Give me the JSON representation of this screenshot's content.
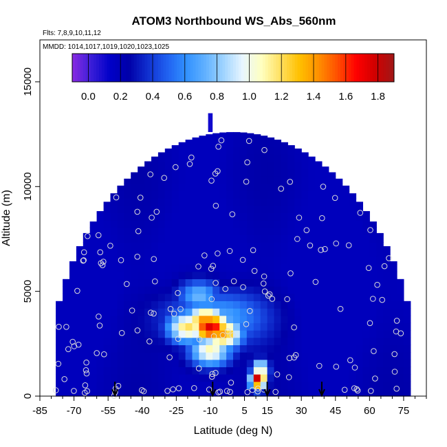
{
  "chart_data": {
    "type": "heatmap",
    "title": "ATOM3 Northbound WS_Abs_560nm",
    "flights_note": "Flts: 7,8,9,10,11,12",
    "dates_note": "MMDD: 1014,1017,1019,1020,1023,1025",
    "xlabel": "Latitude (deg N)",
    "ylabel": "Altitude (m)",
    "xlim": [
      -85,
      85
    ],
    "ylim": [
      0,
      17000
    ],
    "x_ticks": [
      -85,
      -70,
      -55,
      -40,
      -25,
      -10,
      5,
      15,
      30,
      45,
      60,
      75
    ],
    "y_ticks": [
      0,
      5000,
      10000,
      15000
    ],
    "colorbar": {
      "range": [
        -0.1,
        1.9
      ],
      "ticks": [
        0.0,
        0.2,
        0.4,
        0.6,
        0.8,
        1.0,
        1.2,
        1.4,
        1.6,
        1.8
      ],
      "colors": [
        "#8a2be2",
        "#3a1ed8",
        "#0000c8",
        "#0000a8",
        "#1030d0",
        "#2060f0",
        "#3090ff",
        "#60b0ff",
        "#a0d4ff",
        "#e8f6ff",
        "#ffffc0",
        "#ffe060",
        "#ffc000",
        "#ff9000",
        "#ff5000",
        "#ff0000",
        "#d00000",
        "#a01818"
      ]
    },
    "arrows_lat": [
      -52,
      -9,
      15,
      39
    ],
    "field": {
      "lat_range": [
        -78,
        78
      ],
      "background_value": 0.18,
      "hotspots": [
        {
          "lat": -10,
          "alt": 3300,
          "value": 1.75
        },
        {
          "lat": -12,
          "alt": 3600,
          "value": 1.45
        },
        {
          "lat": -5,
          "alt": 3000,
          "value": 1.4
        },
        {
          "lat": -20,
          "alt": 3300,
          "value": 1.2
        },
        {
          "lat": -15,
          "alt": 4800,
          "value": 0.75
        },
        {
          "lat": -10,
          "alt": 2200,
          "value": 1.1
        },
        {
          "lat": 11,
          "alt": 800,
          "value": 1.85
        },
        {
          "lat": 12,
          "alt": 1300,
          "value": 1.2
        }
      ]
    }
  }
}
